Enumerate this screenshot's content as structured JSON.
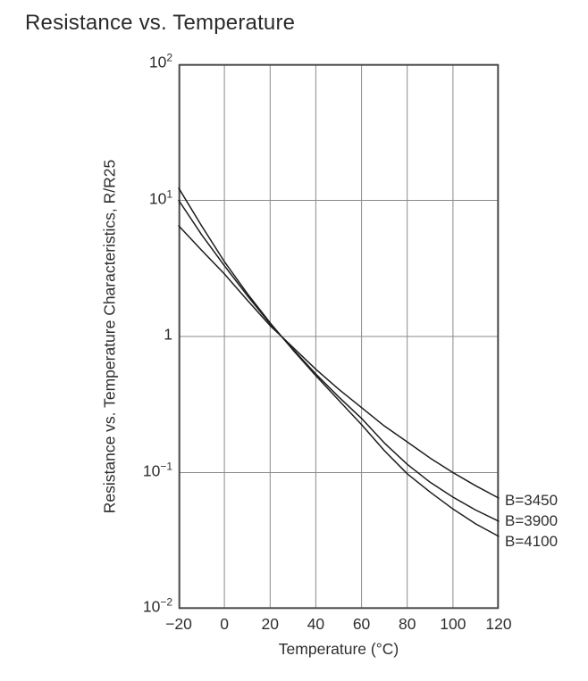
{
  "chart_data": {
    "type": "line",
    "title": "Resistance vs. Temperature",
    "xlabel": "Temperature (°C)",
    "ylabel": "Resistance vs. Temperature Characteristics, R/R25",
    "xlim": [
      -20,
      120
    ],
    "ylim": [
      0.01,
      100
    ],
    "y_scale": "log10",
    "grid": true,
    "legend_position": "right-outside",
    "x_ticks": [
      -20,
      0,
      20,
      40,
      60,
      80,
      100,
      120
    ],
    "x_tick_labels": [
      "−20",
      "0",
      "20",
      "40",
      "60",
      "80",
      "100",
      "120"
    ],
    "y_ticks": [
      {
        "value": 100,
        "base": "10",
        "exp": "2"
      },
      {
        "value": 10,
        "base": "10",
        "exp": "1"
      },
      {
        "value": 1,
        "base": "1",
        "exp": ""
      },
      {
        "value": 0.1,
        "base": "10",
        "exp": "−1"
      },
      {
        "value": 0.01,
        "base": "10",
        "exp": "−2"
      }
    ],
    "x": [
      -20,
      -10,
      0,
      10,
      20,
      25,
      30,
      40,
      50,
      60,
      70,
      80,
      90,
      100,
      110,
      120
    ],
    "series": [
      {
        "name": "B=3450",
        "values": [
          6.5,
          4.3,
          2.88,
          1.85,
          1.2,
          1.0,
          0.83,
          0.575,
          0.41,
          0.3,
          0.22,
          0.168,
          0.128,
          0.1,
          0.08,
          0.065
        ]
      },
      {
        "name": "B=3900",
        "values": [
          10.0,
          5.6,
          3.31,
          2.0,
          1.24,
          1.0,
          0.805,
          0.53,
          0.36,
          0.25,
          0.165,
          0.115,
          0.085,
          0.066,
          0.053,
          0.044
        ]
      },
      {
        "name": "B=4100",
        "values": [
          12.3,
          6.5,
          3.55,
          2.07,
          1.26,
          1.0,
          0.795,
          0.515,
          0.34,
          0.225,
          0.145,
          0.098,
          0.072,
          0.054,
          0.042,
          0.034
        ]
      }
    ],
    "colors": {
      "curve": "#1c1c1c",
      "grid": "#8a8a8a",
      "frame": "#4a4a4a",
      "text": "#2e2e2e",
      "background": "#ffffff"
    }
  }
}
